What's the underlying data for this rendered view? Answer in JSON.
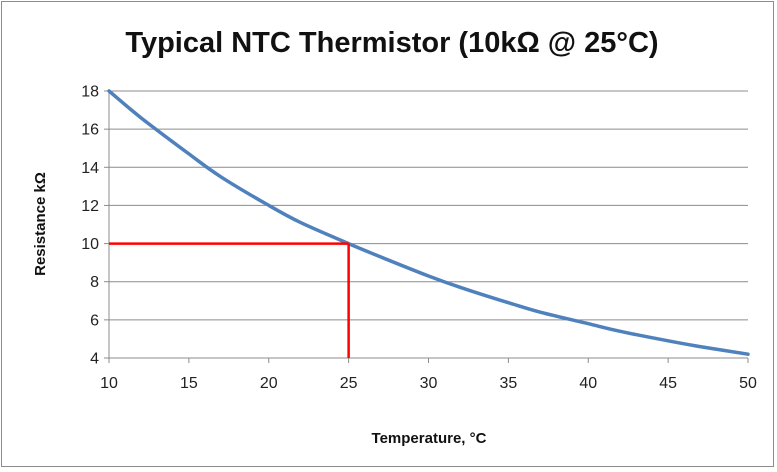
{
  "chart_data": {
    "type": "line",
    "title": "Typical NTC Thermistor (10kΩ @ 25°C)",
    "xlabel": "Temperature, °C",
    "ylabel": "Resistance kΩ",
    "xlim": [
      10,
      50
    ],
    "ylim": [
      4,
      18
    ],
    "x_ticks": [
      10,
      15,
      20,
      25,
      30,
      35,
      40,
      45,
      50
    ],
    "y_ticks": [
      4,
      6,
      8,
      10,
      12,
      14,
      16,
      18
    ],
    "grid": "horizontal",
    "legend": "none",
    "series": [
      {
        "color": "#4f81bd",
        "x": [
          10,
          12,
          15,
          17,
          20,
          22,
          25,
          27,
          30,
          32,
          35,
          37,
          40,
          42,
          45,
          47,
          50
        ],
        "y": [
          18.0,
          16.6,
          14.7,
          13.5,
          12.0,
          11.1,
          10.0,
          9.3,
          8.3,
          7.7,
          6.9,
          6.4,
          5.8,
          5.4,
          4.9,
          4.6,
          4.2
        ]
      }
    ],
    "annotations": [
      {
        "type": "reference-lines",
        "color": "#ff0000",
        "x": 25,
        "y": 10
      }
    ]
  }
}
